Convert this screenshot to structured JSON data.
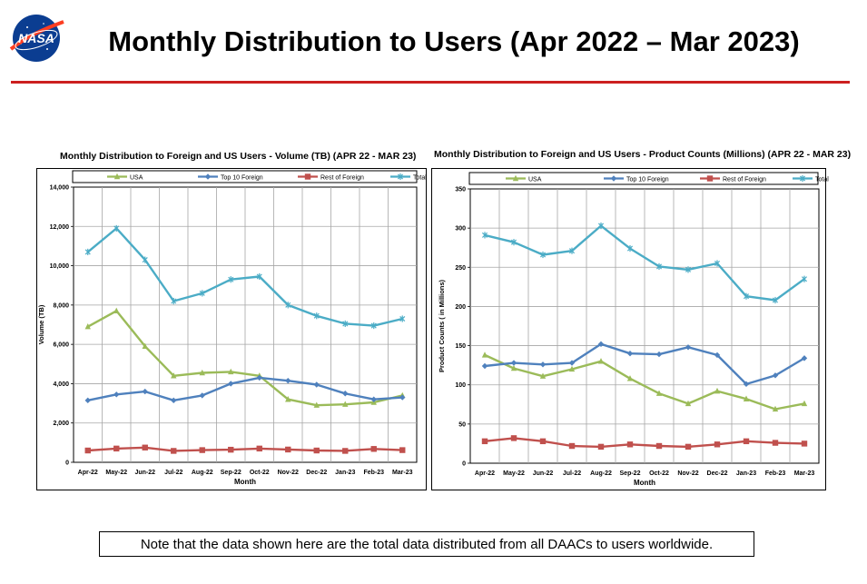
{
  "page": {
    "title": "Monthly Distribution to Users (Apr 2022 – Mar 2023)",
    "logo_text": "NASA",
    "note": "Note that the data shown here are the total data distributed from all DAACs to users worldwide."
  },
  "colors": {
    "rule": "#cc1f1f",
    "usa": "#9bbb59",
    "top10": "#4f81bd",
    "rest": "#c0504d",
    "total": "#4bacc6"
  },
  "chart_data": [
    {
      "type": "line",
      "title": "Monthly Distribution to Foreign and US Users - Volume  (TB) (APR 22 - MAR 23)",
      "xlabel": "Month",
      "ylabel": "Volume (TB)",
      "ylim": [
        0,
        14000
      ],
      "ytick_step": 2000,
      "ytick_labels": [
        "0",
        "2,000",
        "4,000",
        "6,000",
        "8,000",
        "10,000",
        "12,000",
        "14,000"
      ],
      "grid": true,
      "legend_position": "top",
      "categories": [
        "Apr-22",
        "May-22",
        "Jun-22",
        "Jul-22",
        "Aug-22",
        "Sep-22",
        "Oct-22",
        "Nov-22",
        "Dec-22",
        "Jan-23",
        "Feb-23",
        "Mar-23"
      ],
      "series": [
        {
          "name": "USA",
          "key": "usa",
          "marker": "triangle",
          "values": [
            6900,
            7700,
            5900,
            4400,
            4550,
            4600,
            4400,
            3200,
            2900,
            2950,
            3050,
            3400
          ]
        },
        {
          "name": "Top 10 Foreign",
          "key": "top10",
          "marker": "diamond",
          "values": [
            3150,
            3450,
            3600,
            3150,
            3400,
            4000,
            4300,
            4150,
            3950,
            3500,
            3200,
            3300
          ]
        },
        {
          "name": "Rest of Foreign",
          "key": "rest",
          "marker": "square",
          "values": [
            600,
            700,
            750,
            580,
            620,
            640,
            700,
            650,
            600,
            580,
            680,
            620
          ]
        },
        {
          "name": "Total",
          "key": "total",
          "marker": "star",
          "values": [
            10700,
            11900,
            10300,
            8200,
            8600,
            9300,
            9450,
            8000,
            7450,
            7050,
            6950,
            7300
          ]
        }
      ]
    },
    {
      "type": "line",
      "title": "Monthly Distribution to Foreign and US Users - Product Counts (Millions) (APR 22 - MAR 23)",
      "xlabel": "Month",
      "ylabel": "Product Counts ( in Millions)",
      "ylim": [
        0,
        350
      ],
      "ytick_step": 50,
      "ytick_labels": [
        "0",
        "50",
        "100",
        "150",
        "200",
        "250",
        "300",
        "350"
      ],
      "grid": true,
      "legend_position": "top",
      "categories": [
        "Apr-22",
        "May-22",
        "Jun-22",
        "Jul-22",
        "Aug-22",
        "Sep-22",
        "Oct-22",
        "Nov-22",
        "Dec-22",
        "Jan-23",
        "Feb-23",
        "Mar-23"
      ],
      "series": [
        {
          "name": "USA",
          "key": "usa",
          "marker": "triangle",
          "values": [
            138,
            121,
            111,
            120,
            130,
            108,
            89,
            76,
            92,
            82,
            69,
            76
          ]
        },
        {
          "name": "Top 10 Foreign",
          "key": "top10",
          "marker": "diamond",
          "values": [
            124,
            128,
            126,
            128,
            152,
            140,
            139,
            148,
            138,
            101,
            112,
            134
          ]
        },
        {
          "name": "Rest of Foreign",
          "key": "rest",
          "marker": "square",
          "values": [
            28,
            32,
            28,
            22,
            21,
            24,
            22,
            21,
            24,
            28,
            26,
            25
          ]
        },
        {
          "name": "Total",
          "key": "total",
          "marker": "star",
          "values": [
            291,
            282,
            266,
            271,
            303,
            274,
            251,
            247,
            255,
            213,
            208,
            235
          ]
        }
      ]
    }
  ]
}
